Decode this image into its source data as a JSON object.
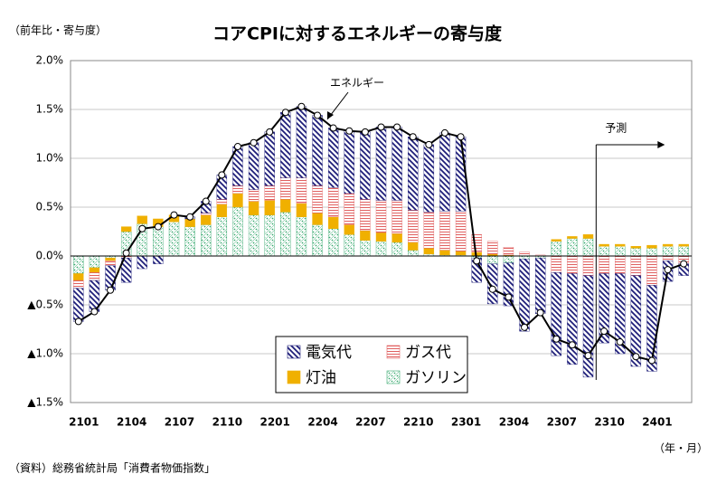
{
  "chart_data": {
    "type": "bar",
    "stacked": true,
    "title": "コアCPIに対するエネルギーの寄与度",
    "y_axis_label": "（前年比・寄与度）",
    "x_axis_label": "（年・月）",
    "source": "（資料）総務省統計局「消費者物価指数」",
    "forecast_label": "予測",
    "categories": [
      "2101",
      null,
      null,
      "2104",
      null,
      null,
      "2107",
      null,
      null,
      "2110",
      null,
      null,
      "2201",
      null,
      null,
      "2204",
      null,
      null,
      "2207",
      null,
      null,
      "2210",
      null,
      null,
      "2301",
      null,
      null,
      "2304",
      null,
      null,
      "2307",
      null,
      null,
      "2310",
      null,
      null,
      "2401",
      null,
      null
    ],
    "series": [
      {
        "name": "電気代",
        "color": "#1f1f7a",
        "values": [
          -0.34,
          -0.32,
          -0.25,
          -0.25,
          -0.13,
          -0.08,
          0.0,
          0.02,
          0.12,
          0.25,
          0.4,
          0.48,
          0.55,
          0.67,
          0.73,
          0.72,
          0.61,
          0.64,
          0.69,
          0.75,
          0.75,
          0.75,
          0.69,
          0.8,
          0.76,
          -0.25,
          -0.41,
          -0.44,
          -0.74,
          -0.57,
          -0.85,
          -0.93,
          -1.04,
          -0.71,
          -0.82,
          -0.93,
          -0.88,
          -0.21,
          -0.12
        ]
      },
      {
        "name": "ガス代",
        "color": "#e06060",
        "values": [
          -0.08,
          -0.08,
          -0.05,
          -0.02,
          0.0,
          0.0,
          0.0,
          0.0,
          0.02,
          0.05,
          0.08,
          0.12,
          0.15,
          0.22,
          0.26,
          0.28,
          0.3,
          0.32,
          0.32,
          0.33,
          0.34,
          0.33,
          0.37,
          0.4,
          0.41,
          0.18,
          0.13,
          0.08,
          0.04,
          0.01,
          -0.17,
          -0.18,
          -0.2,
          -0.18,
          -0.18,
          -0.2,
          -0.3,
          -0.05,
          -0.08
        ]
      },
      {
        "name": "灯油",
        "color": "#f0b000",
        "values": [
          -0.07,
          -0.05,
          -0.03,
          0.05,
          0.08,
          0.08,
          0.07,
          0.08,
          0.1,
          0.13,
          0.14,
          0.14,
          0.15,
          0.13,
          0.14,
          0.12,
          0.12,
          0.1,
          0.1,
          0.09,
          0.09,
          0.08,
          0.06,
          0.05,
          0.04,
          0.04,
          0.02,
          0.01,
          0.0,
          0.0,
          0.02,
          0.02,
          0.04,
          0.02,
          0.02,
          0.02,
          0.03,
          0.02,
          0.02
        ]
      },
      {
        "name": "ガソリン",
        "color": "#3aaa70",
        "values": [
          -0.18,
          -0.12,
          -0.02,
          0.25,
          0.33,
          0.3,
          0.35,
          0.3,
          0.32,
          0.4,
          0.5,
          0.42,
          0.42,
          0.45,
          0.4,
          0.32,
          0.28,
          0.22,
          0.16,
          0.15,
          0.14,
          0.06,
          0.02,
          0.01,
          0.01,
          -0.02,
          -0.08,
          -0.07,
          -0.03,
          -0.02,
          0.15,
          0.18,
          0.18,
          0.1,
          0.1,
          0.08,
          0.08,
          0.1,
          0.1
        ]
      }
    ],
    "line": {
      "name": "エネルギー",
      "color": "#000000",
      "values": [
        -0.67,
        -0.57,
        -0.35,
        0.03,
        0.28,
        0.3,
        0.42,
        0.4,
        0.56,
        0.83,
        1.12,
        1.16,
        1.27,
        1.47,
        1.53,
        1.44,
        1.31,
        1.28,
        1.27,
        1.32,
        1.32,
        1.22,
        1.14,
        1.26,
        1.22,
        -0.05,
        -0.34,
        -0.42,
        -0.73,
        -0.58,
        -0.85,
        -0.91,
        -1.02,
        -0.77,
        -0.88,
        -1.03,
        -1.07,
        -0.14,
        -0.08
      ]
    },
    "ylim": [
      -1.5,
      2.0
    ],
    "yticks": [
      {
        "value": -1.5,
        "label": "▲1.5%"
      },
      {
        "value": -1.0,
        "label": "▲1.0%"
      },
      {
        "value": -0.5,
        "label": "▲0.5%"
      },
      {
        "value": 0,
        "label": "0.0%"
      },
      {
        "value": 0.5,
        "label": "0.5%"
      },
      {
        "value": 1.0,
        "label": "1.0%"
      },
      {
        "value": 1.5,
        "label": "1.5%"
      },
      {
        "value": 2.0,
        "label": "2.0%"
      }
    ],
    "grid": true
  }
}
